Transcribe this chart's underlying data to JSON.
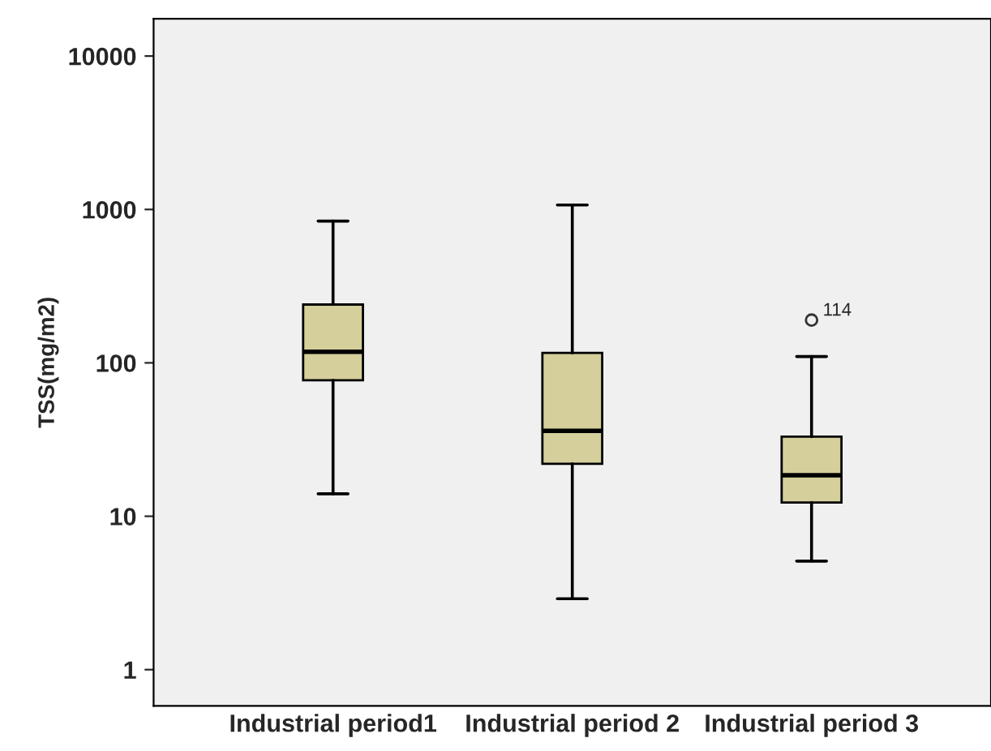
{
  "chart_data": {
    "type": "box",
    "ylabel": "TSS(mg/m2)",
    "categories": [
      "Industrial period1",
      "Industrial period 2",
      "Industrial period 3"
    ],
    "series": [
      {
        "color": "#d4cf9b",
        "boxes": [
          {
            "low": 14,
            "q1": 77,
            "median": 118,
            "q3": 240,
            "high": 840
          },
          {
            "low": 2.9,
            "q1": 22,
            "median": 36,
            "q3": 116,
            "high": 1070
          },
          {
            "low": 5.1,
            "q1": 12.3,
            "median": 18.5,
            "q3": 33,
            "high": 110,
            "outliers": [
              190
            ]
          }
        ]
      }
    ],
    "log": true,
    "ylim": [
      0.58,
      17500
    ],
    "yticks": [
      1,
      10,
      100,
      1000,
      10000
    ],
    "annotations": [
      "114"
    ],
    "grid": false,
    "legend": false
  }
}
